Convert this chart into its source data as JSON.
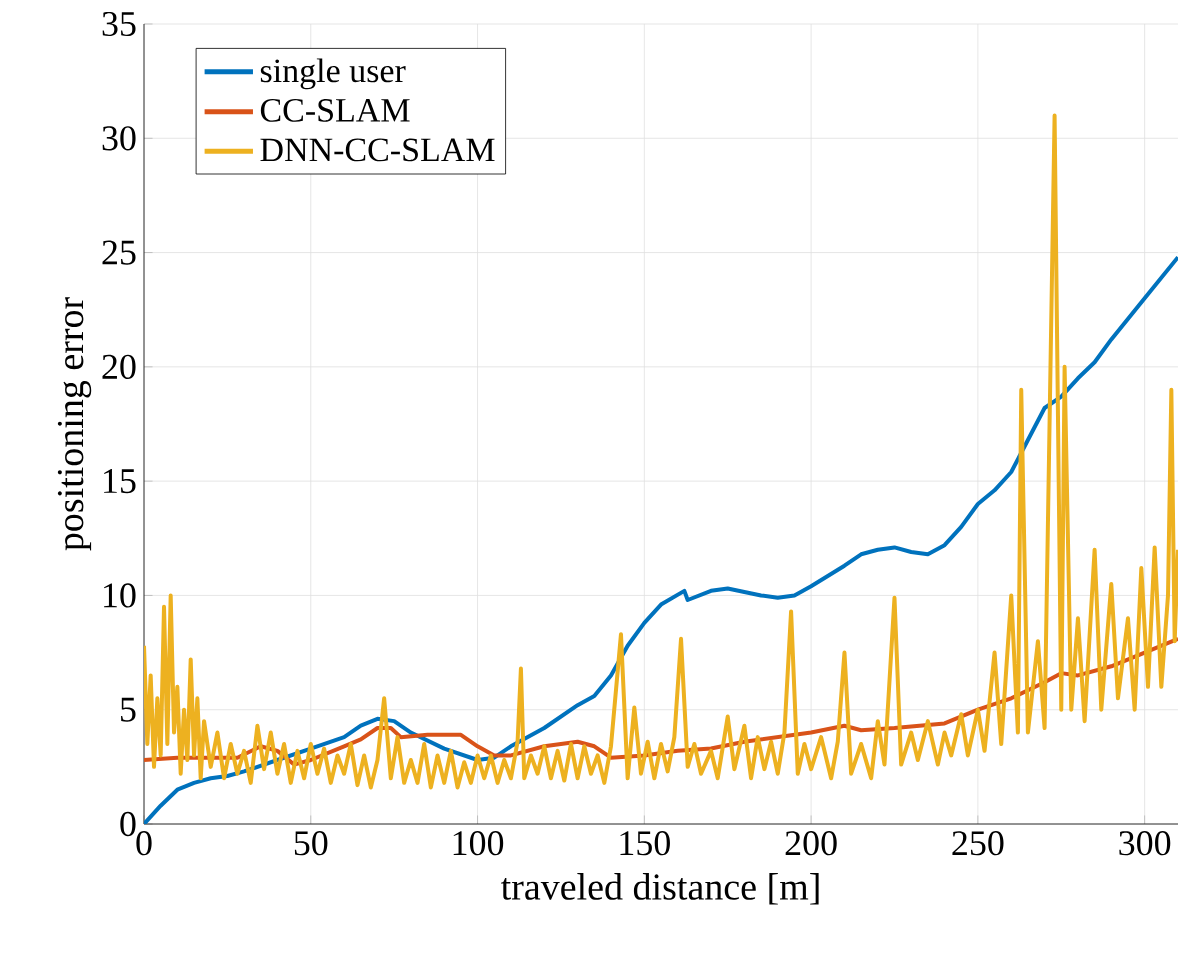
{
  "chart_data": {
    "type": "line",
    "xlabel": "traveled distance [m]",
    "ylabel": "positioning error",
    "xlim": [
      0,
      310
    ],
    "ylim": [
      0,
      35
    ],
    "xticks": [
      0,
      50,
      100,
      150,
      200,
      250,
      300
    ],
    "yticks": [
      0,
      5,
      10,
      15,
      20,
      25,
      30,
      35
    ],
    "grid": true,
    "legend": "top left",
    "line_style": "solid",
    "marker": "none",
    "series": [
      {
        "name": "single user",
        "color": "#0072bd",
        "x": [
          0,
          5,
          10,
          15,
          20,
          25,
          30,
          40,
          50,
          60,
          65,
          70,
          75,
          80,
          90,
          100,
          105,
          110,
          120,
          130,
          135,
          140,
          145,
          150,
          155,
          162,
          163,
          170,
          175,
          185,
          190,
          195,
          200,
          210,
          215,
          220,
          225,
          230,
          235,
          240,
          245,
          250,
          255,
          260,
          265,
          270,
          275,
          280,
          285,
          290,
          300,
          310
        ],
        "values": [
          0,
          0.8,
          1.5,
          1.8,
          2,
          2.1,
          2.3,
          2.8,
          3.3,
          3.8,
          4.3,
          4.6,
          4.5,
          4,
          3.3,
          2.8,
          2.9,
          3.4,
          4.2,
          5.2,
          5.6,
          6.5,
          7.8,
          8.8,
          9.6,
          10.2,
          9.8,
          10.2,
          10.3,
          10,
          9.9,
          10,
          10.4,
          11.3,
          11.8,
          12,
          12.1,
          11.9,
          11.8,
          12.2,
          13,
          14,
          14.6,
          15.4,
          16.8,
          18.2,
          18.7,
          19.5,
          20.2,
          21.2,
          23,
          24.8
        ]
      },
      {
        "name": "CC-SLAM",
        "color": "#d95319",
        "x": [
          0,
          10,
          20,
          28,
          35,
          40,
          45,
          50,
          60,
          65,
          70,
          74,
          77,
          85,
          95,
          100,
          105,
          110,
          120,
          130,
          135,
          140,
          150,
          160,
          170,
          180,
          190,
          200,
          210,
          215,
          225,
          240,
          250,
          260,
          270,
          275,
          280,
          290,
          300,
          310
        ],
        "values": [
          2.8,
          2.9,
          2.9,
          2.9,
          3.4,
          3.2,
          2.6,
          2.8,
          3.4,
          3.7,
          4.2,
          4.2,
          3.8,
          3.9,
          3.9,
          3.4,
          3.0,
          3.0,
          3.4,
          3.6,
          3.4,
          2.9,
          3.0,
          3.2,
          3.3,
          3.6,
          3.8,
          4.0,
          4.3,
          4.1,
          4.2,
          4.4,
          5.0,
          5.5,
          6.2,
          6.6,
          6.5,
          6.9,
          7.5,
          8.1
        ]
      },
      {
        "name": "DNN-CC-SLAM",
        "color": "#edb120",
        "x": [
          0,
          1,
          2,
          3,
          4,
          5,
          6,
          7,
          8,
          9,
          10,
          11,
          12,
          13,
          14,
          15,
          16,
          17,
          18,
          20,
          22,
          24,
          26,
          28,
          30,
          32,
          34,
          36,
          38,
          40,
          42,
          44,
          46,
          48,
          50,
          52,
          54,
          56,
          58,
          60,
          62,
          64,
          66,
          68,
          70,
          72,
          74,
          76,
          78,
          80,
          82,
          84,
          86,
          88,
          90,
          92,
          94,
          96,
          98,
          100,
          102,
          104,
          106,
          108,
          110,
          112,
          113,
          114,
          116,
          118,
          120,
          122,
          124,
          126,
          128,
          130,
          132,
          134,
          136,
          138,
          140,
          143,
          145,
          147,
          149,
          151,
          153,
          155,
          157,
          159,
          161,
          163,
          165,
          167,
          170,
          172,
          175,
          177,
          180,
          182,
          184,
          186,
          188,
          190,
          192,
          194,
          196,
          198,
          200,
          203,
          206,
          208,
          210,
          212,
          215,
          218,
          220,
          222,
          225,
          227,
          230,
          232,
          235,
          238,
          240,
          242,
          245,
          247,
          250,
          252,
          255,
          257,
          260,
          262,
          263,
          265,
          268,
          270,
          273,
          275,
          276,
          278,
          280,
          282,
          285,
          287,
          290,
          292,
          295,
          297,
          299,
          301,
          303,
          305,
          307,
          308,
          309,
          310
        ],
        "values": [
          7.8,
          3.5,
          6.5,
          2.5,
          5.5,
          3,
          9.5,
          3.5,
          10,
          4,
          6,
          2.2,
          5,
          2.8,
          7.2,
          3,
          5.5,
          2,
          4.5,
          2.5,
          4,
          2,
          3.5,
          2.2,
          3.2,
          1.8,
          4.3,
          2.4,
          4,
          2.2,
          3.5,
          1.8,
          3.2,
          2,
          3.5,
          2.2,
          3.3,
          1.8,
          3,
          2.2,
          3.5,
          1.7,
          3,
          1.6,
          2.8,
          5.5,
          2,
          3.8,
          1.8,
          2.8,
          1.8,
          3.5,
          1.6,
          3,
          1.8,
          3.2,
          1.6,
          2.7,
          1.8,
          3,
          2,
          3,
          1.8,
          2.8,
          2,
          3.6,
          6.8,
          2,
          3,
          2.2,
          3.4,
          2,
          3.2,
          1.9,
          3.5,
          2,
          3.4,
          2.2,
          3,
          1.8,
          3.4,
          8.3,
          2,
          5.1,
          2.2,
          3.6,
          2,
          3.5,
          2.3,
          3.8,
          8.1,
          2.5,
          3.5,
          2.2,
          3.2,
          2,
          4.7,
          2.4,
          4.3,
          2,
          3.8,
          2.4,
          3.6,
          2.2,
          4,
          9.3,
          2.2,
          3.5,
          2.4,
          3.8,
          2,
          3.6,
          7.5,
          2.2,
          3.5,
          2,
          4.5,
          2.6,
          9.9,
          2.6,
          4,
          2.8,
          4.5,
          2.6,
          4,
          3,
          4.8,
          3,
          5,
          3.2,
          7.5,
          3.5,
          10,
          4,
          19,
          4,
          8,
          4.2,
          31,
          5,
          20,
          5,
          9,
          4.5,
          12,
          5,
          10.5,
          5.5,
          9,
          5,
          11.2,
          6,
          12.1,
          6,
          10,
          19,
          8,
          12
        ]
      }
    ]
  }
}
